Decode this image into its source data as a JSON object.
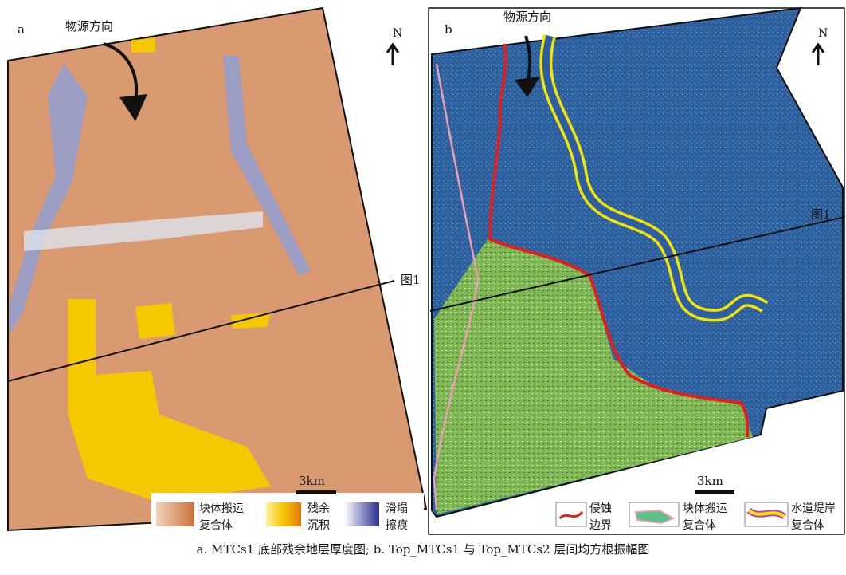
{
  "panels": [
    {
      "label": "a",
      "source_direction": "物源方向",
      "north": "N",
      "section_label": "图1",
      "scale": "3km",
      "legend": [
        [
          "块体搬运",
          "复合体"
        ],
        [
          "残余",
          "沉积"
        ],
        [
          "滑塌",
          "擦痕"
        ]
      ]
    },
    {
      "label": "b",
      "source_direction": "物源方向",
      "north": "N",
      "section_label": "图1",
      "scale": "3km",
      "legend": [
        [
          "侵蚀",
          "边界"
        ],
        [
          "块体搬运",
          "复合体"
        ],
        [
          "水道堤岸",
          "复合体"
        ]
      ]
    }
  ],
  "caption": "a. MTCs1 底部残余地层厚度图; b. Top_MTCs1 与 Top_MTCs2 层间均方根振幅图"
}
